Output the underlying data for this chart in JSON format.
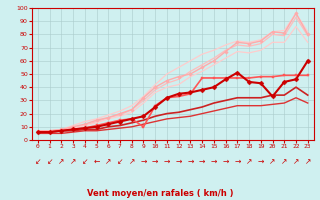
{
  "title": "",
  "xlabel": "Vent moyen/en rafales ( km/h )",
  "ylabel": "",
  "bg_color": "#cff0f0",
  "grid_color": "#aacccc",
  "xlim": [
    -0.5,
    23.5
  ],
  "ylim": [
    0,
    100
  ],
  "xticks": [
    0,
    1,
    2,
    3,
    4,
    5,
    6,
    7,
    8,
    9,
    10,
    11,
    12,
    13,
    14,
    15,
    16,
    17,
    18,
    19,
    20,
    21,
    22,
    23
  ],
  "yticks": [
    0,
    10,
    20,
    30,
    40,
    50,
    60,
    70,
    80,
    90,
    100
  ],
  "series": [
    {
      "x": [
        0,
        1,
        2,
        3,
        4,
        5,
        6,
        7,
        8,
        9,
        10,
        11,
        12,
        13,
        14,
        15,
        16,
        17,
        18,
        19,
        20,
        21,
        22,
        23
      ],
      "y": [
        6,
        6,
        7,
        8,
        9,
        10,
        12,
        14,
        16,
        18,
        25,
        32,
        35,
        36,
        38,
        40,
        46,
        51,
        44,
        43,
        33,
        44,
        46,
        60
      ],
      "color": "#cc0000",
      "lw": 1.5,
      "marker": "D",
      "ms": 2.5,
      "zorder": 5
    },
    {
      "x": [
        0,
        1,
        2,
        3,
        4,
        5,
        6,
        7,
        8,
        9,
        10,
        11,
        12,
        13,
        14,
        15,
        16,
        17,
        18,
        19,
        20,
        21,
        22,
        23
      ],
      "y": [
        6,
        6,
        7,
        8,
        9,
        11,
        13,
        15,
        16,
        10,
        26,
        32,
        33,
        35,
        47,
        47,
        47,
        47,
        47,
        48,
        48,
        49,
        49,
        49
      ],
      "color": "#ff5555",
      "lw": 1.2,
      "marker": "s",
      "ms": 2.0,
      "zorder": 4
    },
    {
      "x": [
        0,
        1,
        2,
        3,
        4,
        5,
        6,
        7,
        8,
        9,
        10,
        11,
        12,
        13,
        14,
        15,
        16,
        17,
        18,
        19,
        20,
        21,
        22,
        23
      ],
      "y": [
        7,
        7,
        8,
        10,
        12,
        15,
        17,
        20,
        23,
        32,
        40,
        45,
        48,
        50,
        55,
        60,
        67,
        74,
        73,
        75,
        82,
        81,
        96,
        80
      ],
      "color": "#ffaaaa",
      "lw": 1.0,
      "marker": "D",
      "ms": 1.8,
      "zorder": 3
    },
    {
      "x": [
        0,
        1,
        2,
        3,
        4,
        5,
        6,
        7,
        8,
        9,
        10,
        11,
        12,
        13,
        14,
        15,
        16,
        17,
        18,
        19,
        20,
        21,
        22,
        23
      ],
      "y": [
        7,
        7,
        8,
        11,
        14,
        16,
        19,
        22,
        26,
        33,
        42,
        50,
        55,
        60,
        65,
        68,
        72,
        75,
        74,
        76,
        82,
        83,
        96,
        82
      ],
      "color": "#ffcccc",
      "lw": 0.9,
      "marker": null,
      "ms": 0,
      "zorder": 2
    },
    {
      "x": [
        0,
        1,
        2,
        3,
        4,
        5,
        6,
        7,
        8,
        9,
        10,
        11,
        12,
        13,
        14,
        15,
        16,
        17,
        18,
        19,
        20,
        21,
        22,
        23
      ],
      "y": [
        6,
        6,
        7,
        9,
        11,
        14,
        17,
        19,
        23,
        30,
        38,
        43,
        46,
        52,
        57,
        62,
        68,
        72,
        71,
        73,
        80,
        79,
        93,
        79
      ],
      "color": "#ffbbbb",
      "lw": 0.9,
      "marker": null,
      "ms": 0,
      "zorder": 2
    },
    {
      "x": [
        0,
        1,
        2,
        3,
        4,
        5,
        6,
        7,
        8,
        9,
        10,
        11,
        12,
        13,
        14,
        15,
        16,
        17,
        18,
        19,
        20,
        21,
        22,
        23
      ],
      "y": [
        6,
        6,
        7,
        9,
        11,
        13,
        16,
        18,
        21,
        28,
        36,
        40,
        42,
        48,
        52,
        57,
        62,
        67,
        66,
        68,
        74,
        74,
        86,
        74
      ],
      "color": "#ffcccc",
      "lw": 0.9,
      "marker": null,
      "ms": 0,
      "zorder": 2
    },
    {
      "x": [
        0,
        1,
        2,
        3,
        4,
        5,
        6,
        7,
        8,
        9,
        10,
        11,
        12,
        13,
        14,
        15,
        16,
        17,
        18,
        19,
        20,
        21,
        22,
        23
      ],
      "y": [
        6,
        6,
        7,
        7,
        8,
        8,
        10,
        11,
        13,
        15,
        18,
        20,
        21,
        23,
        25,
        28,
        30,
        32,
        32,
        32,
        34,
        34,
        40,
        34
      ],
      "color": "#cc2222",
      "lw": 1.2,
      "marker": null,
      "ms": 0,
      "zorder": 3
    },
    {
      "x": [
        0,
        1,
        2,
        3,
        4,
        5,
        6,
        7,
        8,
        9,
        10,
        11,
        12,
        13,
        14,
        15,
        16,
        17,
        18,
        19,
        20,
        21,
        22,
        23
      ],
      "y": [
        5,
        5,
        5,
        6,
        7,
        7,
        8,
        9,
        10,
        12,
        14,
        16,
        17,
        18,
        20,
        22,
        24,
        26,
        26,
        26,
        27,
        28,
        32,
        28
      ],
      "color": "#dd3333",
      "lw": 1.0,
      "marker": null,
      "ms": 0,
      "zorder": 3
    }
  ],
  "arrow_symbols": [
    "↙",
    "↙",
    "↗",
    "↗",
    "↙",
    "←",
    "↗",
    "↙",
    "↗",
    "→",
    "→",
    "→",
    "→",
    "→",
    "→",
    "→",
    "→",
    "→",
    "↗",
    "→",
    "↗",
    "↗",
    "↗",
    "↗"
  ],
  "arrow_color": "#cc0000",
  "xlabel_color": "#cc0000",
  "tick_color": "#cc0000",
  "axis_color": "#cc0000"
}
